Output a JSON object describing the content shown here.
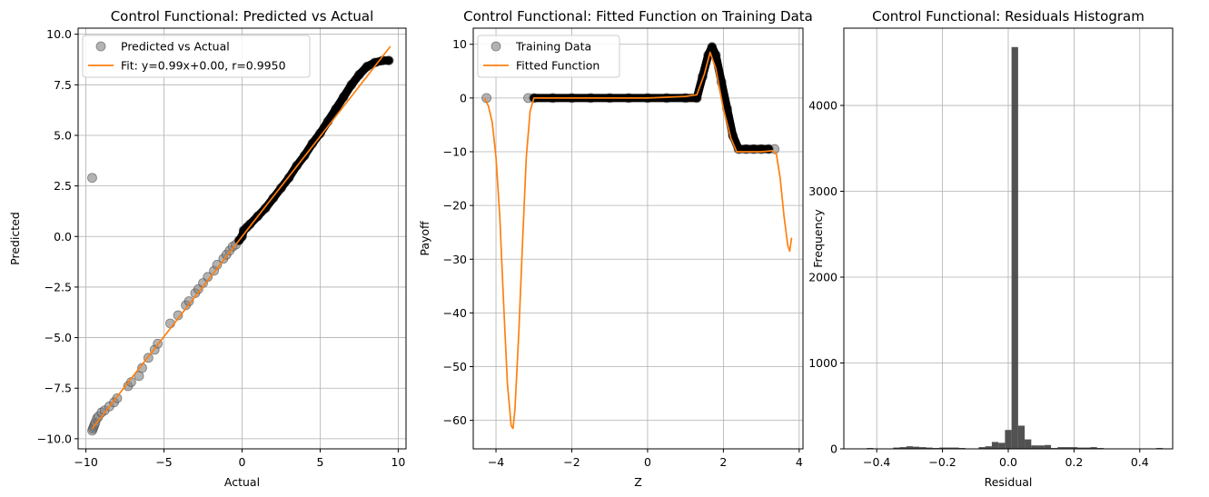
{
  "chart_data": [
    {
      "type": "scatter",
      "title": "Control Functional: Predicted vs Actual",
      "xlabel": "Actual",
      "ylabel": "Predicted",
      "xlim": [
        -10.5,
        10.5
      ],
      "ylim": [
        -10.5,
        10.3
      ],
      "xticks": [
        -10,
        -5,
        0,
        5,
        10
      ],
      "yticks": [
        -10.0,
        -7.5,
        -5.0,
        -2.5,
        0.0,
        2.5,
        5.0,
        7.5,
        10.0
      ],
      "ytick_labels": [
        "−10.0",
        "−7.5",
        "−5.0",
        "−2.5",
        "0.0",
        "2.5",
        "5.0",
        "7.5",
        "10.0"
      ],
      "xtick_labels": [
        "−10",
        "−5",
        "0",
        "5",
        "10"
      ],
      "grid": true,
      "legend_position": "top-left",
      "series": [
        {
          "name": "Predicted vs Actual",
          "kind": "scatter",
          "color": "#808080",
          "x": [
            -9.6,
            -9.55,
            -9.5,
            -9.45,
            -9.4,
            -9.3,
            -9.2,
            -9.0,
            -8.8,
            -8.5,
            -8.2,
            -8.0,
            -7.3,
            -7.1,
            -6.6,
            -6.4,
            -6.0,
            -5.6,
            -5.4,
            -4.6,
            -4.1,
            -3.6,
            -3.4,
            -3.0,
            -2.8,
            -2.5,
            -2.2,
            -1.8,
            -1.6,
            -1.2,
            -1.0,
            -0.8,
            -0.6,
            -0.4,
            -0.2,
            -9.6,
            0.0,
            0.1,
            0.3,
            0.5,
            1.0,
            1.5,
            2.0,
            2.5,
            3.0,
            3.5,
            4.0,
            4.5,
            5.0,
            5.5,
            6.0,
            6.5,
            7.0,
            7.5,
            8.0,
            8.5,
            9.0,
            9.4
          ],
          "y": [
            -9.6,
            -9.5,
            -9.4,
            -9.3,
            -9.2,
            -9.0,
            -8.9,
            -8.7,
            -8.6,
            -8.4,
            -8.2,
            -8.0,
            -7.4,
            -7.2,
            -6.9,
            -6.5,
            -6.0,
            -5.6,
            -5.3,
            -4.3,
            -3.9,
            -3.4,
            -3.2,
            -2.8,
            -2.6,
            -2.3,
            -2.0,
            -1.7,
            -1.4,
            -1.1,
            -0.9,
            -0.7,
            -0.5,
            -0.4,
            -0.2,
            2.9,
            0.0,
            0.3,
            0.45,
            0.6,
            1.0,
            1.4,
            1.9,
            2.4,
            2.9,
            3.5,
            4.0,
            4.6,
            5.1,
            5.7,
            6.3,
            6.9,
            7.5,
            8.0,
            8.4,
            8.6,
            8.7,
            8.7
          ]
        },
        {
          "name": "Fit: y=0.99x+0.00, r=0.9950",
          "kind": "line",
          "color": "#ff7f0e",
          "x": [
            -9.6,
            9.5
          ],
          "y": [
            -9.5,
            9.4
          ]
        }
      ]
    },
    {
      "type": "line",
      "title": "Control Functional: Fitted Function on Training Data",
      "xlabel": "Z",
      "ylabel": "Payoff",
      "xlim": [
        -4.6,
        4.1
      ],
      "ylim": [
        -65.3,
        13.0
      ],
      "xticks": [
        -4,
        -2,
        0,
        2,
        4
      ],
      "xtick_labels": [
        "−4",
        "−2",
        "0",
        "2",
        "4"
      ],
      "yticks": [
        -60,
        -50,
        -40,
        -30,
        -20,
        -10,
        0,
        10
      ],
      "ytick_labels": [
        "−60",
        "−50",
        "−40",
        "−30",
        "−20",
        "−10",
        "0",
        "10"
      ],
      "grid": true,
      "legend_position": "top-left",
      "series": [
        {
          "name": "Training Data",
          "kind": "scatter",
          "color": "#808080",
          "x": [
            -4.25,
            -3.15,
            -3.0,
            -2.5,
            -2.0,
            -1.5,
            -1.0,
            -0.5,
            0.0,
            0.5,
            1.0,
            1.3,
            1.45,
            1.6,
            1.7,
            1.8,
            1.95,
            2.1,
            2.25,
            2.4,
            2.6,
            2.8,
            3.0,
            3.2,
            3.35
          ],
          "y": [
            0.0,
            0.0,
            0.0,
            0.0,
            0.0,
            0.0,
            0.0,
            0.0,
            0.0,
            0.0,
            0.0,
            0.0,
            4.0,
            8.0,
            9.5,
            8.0,
            3.0,
            -2.0,
            -7.0,
            -9.5,
            -9.5,
            -9.5,
            -9.5,
            -9.5,
            -9.5
          ]
        },
        {
          "name": "Fitted Function",
          "kind": "line",
          "color": "#ff7f0e",
          "x": [
            -4.3,
            -4.2,
            -4.1,
            -4.0,
            -3.9,
            -3.8,
            -3.7,
            -3.6,
            -3.55,
            -3.5,
            -3.4,
            -3.3,
            -3.2,
            -3.1,
            -3.0,
            -2.5,
            -2.0,
            -1.0,
            0.0,
            1.0,
            1.3,
            1.5,
            1.65,
            1.8,
            2.0,
            2.2,
            2.35,
            2.5,
            3.0,
            3.3,
            3.4,
            3.5,
            3.6,
            3.7,
            3.75,
            3.8
          ],
          "y": [
            0.0,
            -1.5,
            -4.5,
            -11.0,
            -22.0,
            -38.0,
            -53.0,
            -61.0,
            -61.5,
            -58.0,
            -44.0,
            -27.0,
            -11.0,
            -2.5,
            0.0,
            0.0,
            0.0,
            0.0,
            0.0,
            0.3,
            0.6,
            4.5,
            8.5,
            5.5,
            -2.0,
            -7.5,
            -10.0,
            -10.0,
            -10.0,
            -9.8,
            -10.5,
            -15.0,
            -22.0,
            -27.5,
            -28.5,
            -26.0
          ]
        }
      ]
    },
    {
      "type": "bar",
      "title": "Control Functional: Residuals Histogram",
      "xlabel": "Residual",
      "ylabel": "Frequency",
      "xlim": [
        -0.5,
        0.5
      ],
      "ylim": [
        0,
        4900
      ],
      "xticks": [
        -0.4,
        -0.2,
        0.0,
        0.2,
        0.4
      ],
      "xtick_labels": [
        "−0.4",
        "−0.2",
        "0.0",
        "0.2",
        "0.4"
      ],
      "yticks": [
        0,
        1000,
        2000,
        3000,
        4000
      ],
      "ytick_labels": [
        "0",
        "1000",
        "2000",
        "3000",
        "4000"
      ],
      "grid": true,
      "bar_color": "#3f3f3f",
      "bin_edges": [
        -0.43,
        -0.41,
        -0.39,
        -0.37,
        -0.35,
        -0.33,
        -0.31,
        -0.29,
        -0.27,
        -0.25,
        -0.23,
        -0.21,
        -0.19,
        -0.17,
        -0.15,
        -0.13,
        -0.11,
        -0.09,
        -0.07,
        -0.05,
        -0.03,
        -0.01,
        0.01,
        0.03,
        0.05,
        0.07,
        0.09,
        0.11,
        0.13,
        0.15,
        0.17,
        0.19,
        0.21,
        0.23,
        0.25,
        0.27,
        0.29,
        0.31,
        0.33,
        0.35,
        0.37,
        0.39,
        0.41,
        0.43,
        0.45,
        0.47
      ],
      "values": [
        10,
        5,
        0,
        0,
        15,
        20,
        30,
        25,
        20,
        15,
        10,
        15,
        15,
        15,
        10,
        5,
        5,
        20,
        30,
        80,
        70,
        220,
        4680,
        270,
        110,
        40,
        40,
        45,
        10,
        20,
        20,
        20,
        15,
        15,
        20,
        10,
        5,
        0,
        0,
        0,
        0,
        0,
        0,
        5,
        10
      ]
    }
  ]
}
